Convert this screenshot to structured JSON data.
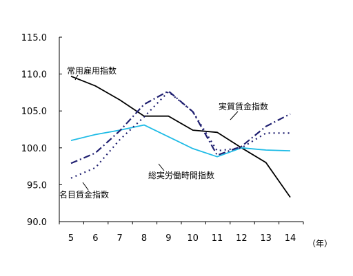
{
  "chart_data": {
    "type": "line",
    "title": "",
    "xlabel": "（年）",
    "ylabel": "",
    "x": [
      "5",
      "6",
      "7",
      "8",
      "9",
      "10",
      "11",
      "12",
      "13",
      "14"
    ],
    "ylim": [
      90.0,
      115.0
    ],
    "yticks": [
      "90.0",
      "95.0",
      "100.0",
      "105.0",
      "110.0",
      "115.0"
    ],
    "grid": false,
    "legend": "none",
    "series": [
      {
        "name": "常用雇用指数",
        "color": "#000000",
        "style": "solid",
        "values": [
          109.7,
          108.4,
          106.5,
          104.3,
          104.3,
          102.4,
          102.1,
          100.0,
          98.0,
          93.3
        ]
      },
      {
        "name": "総実労働時間指数",
        "color": "#1ebbe6",
        "style": "solid",
        "values": [
          101.0,
          101.8,
          102.4,
          103.1,
          101.5,
          99.9,
          98.8,
          100.0,
          99.7,
          99.6
        ]
      },
      {
        "name": "実質賃金指数",
        "color": "#1f1f70",
        "style": "dash-dot",
        "values": [
          97.9,
          99.3,
          102.3,
          105.9,
          107.7,
          104.9,
          99.0,
          100.2,
          102.9,
          104.6
        ]
      },
      {
        "name": "名目賃金指数",
        "color": "#1f1f70",
        "style": "dotted",
        "values": [
          95.9,
          97.3,
          101.1,
          104.2,
          107.6,
          104.9,
          99.6,
          100.0,
          102.0,
          102.0
        ]
      }
    ]
  }
}
